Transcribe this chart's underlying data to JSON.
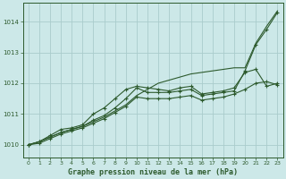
{
  "background_color": "#cce8e8",
  "grid_color": "#aacccc",
  "line_color": "#2d5a2d",
  "title": "Graphe pression niveau de la mer (hPa)",
  "xlim": [
    -0.5,
    23.5
  ],
  "ylim": [
    1009.6,
    1014.6
  ],
  "yticks": [
    1010,
    1011,
    1012,
    1013,
    1014
  ],
  "xticks": [
    0,
    1,
    2,
    3,
    4,
    5,
    6,
    7,
    8,
    9,
    10,
    11,
    12,
    13,
    14,
    15,
    16,
    17,
    18,
    19,
    20,
    21,
    22,
    23
  ],
  "lines": [
    {
      "x": [
        0,
        1,
        2,
        3,
        4,
        5,
        6,
        7,
        8,
        9,
        10,
        11,
        12,
        13,
        14,
        15,
        16,
        17,
        18,
        19,
        20,
        21,
        22,
        23
      ],
      "y": [
        1010.0,
        1010.1,
        1010.25,
        1010.4,
        1010.5,
        1010.6,
        1010.75,
        1010.9,
        1011.1,
        1011.3,
        1011.6,
        1011.8,
        1012.0,
        1012.1,
        1012.2,
        1012.3,
        1012.35,
        1012.4,
        1012.45,
        1012.5,
        1012.5,
        1013.3,
        1013.85,
        1014.35
      ],
      "marker": null,
      "linestyle": "-"
    },
    {
      "x": [
        0,
        1,
        2,
        3,
        4,
        5,
        6,
        7,
        8,
        9,
        10,
        11,
        12,
        13,
        14,
        15,
        16,
        17,
        18,
        19,
        20,
        21,
        22,
        23
      ],
      "y": [
        1010.0,
        1010.1,
        1010.3,
        1010.5,
        1010.55,
        1010.65,
        1011.0,
        1011.2,
        1011.5,
        1011.8,
        1011.9,
        1011.85,
        1011.8,
        1011.75,
        1011.85,
        1011.9,
        1011.65,
        1011.7,
        1011.75,
        1011.85,
        1012.35,
        1012.45,
        1011.9,
        1012.0
      ],
      "marker": "+",
      "linestyle": "-"
    },
    {
      "x": [
        0,
        1,
        2,
        3,
        4,
        5,
        6,
        7,
        8,
        9,
        10,
        11,
        12,
        13,
        14,
        15,
        16,
        17,
        18,
        19,
        20,
        21,
        22,
        23
      ],
      "y": [
        1010.0,
        1010.1,
        1010.25,
        1010.4,
        1010.5,
        1010.6,
        1010.8,
        1010.95,
        1011.2,
        1011.5,
        1011.85,
        1011.7,
        1011.7,
        1011.7,
        1011.75,
        1011.8,
        1011.6,
        1011.65,
        1011.7,
        1011.75,
        1012.4,
        1013.25,
        1013.75,
        1014.3
      ],
      "marker": "+",
      "linestyle": "-"
    },
    {
      "x": [
        0,
        1,
        2,
        3,
        4,
        5,
        6,
        7,
        8,
        9,
        10,
        11,
        12,
        13,
        14,
        15,
        16,
        17,
        18,
        19,
        20,
        21,
        22,
        23
      ],
      "y": [
        1010.0,
        1010.05,
        1010.2,
        1010.35,
        1010.45,
        1010.55,
        1010.7,
        1010.85,
        1011.05,
        1011.25,
        1011.55,
        1011.5,
        1011.5,
        1011.5,
        1011.55,
        1011.6,
        1011.45,
        1011.5,
        1011.55,
        1011.65,
        1011.8,
        1012.0,
        1012.05,
        1011.95
      ],
      "marker": "+",
      "linestyle": "-"
    }
  ]
}
